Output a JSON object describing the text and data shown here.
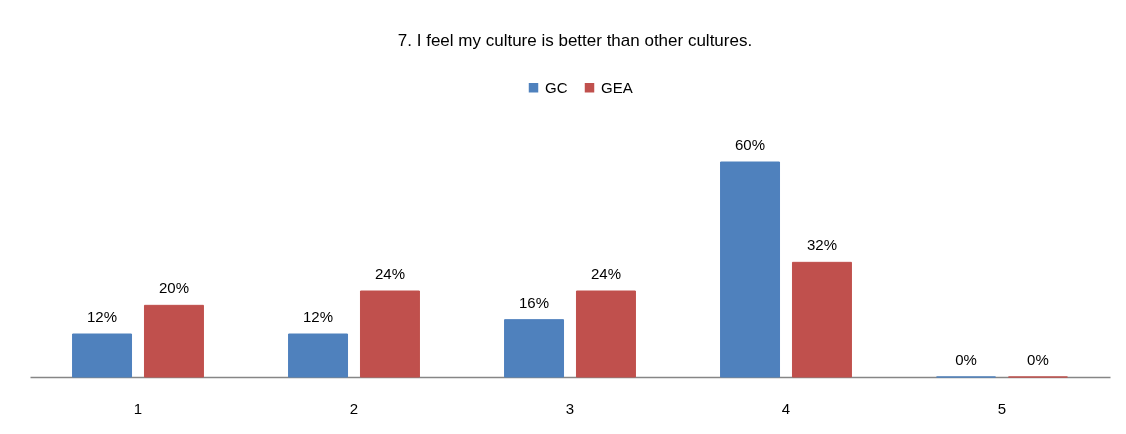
{
  "chart_data": {
    "type": "bar",
    "title": "7. I feel my culture is better than other cultures.",
    "categories": [
      "1",
      "2",
      "3",
      "4",
      "5"
    ],
    "series": [
      {
        "name": "GC",
        "color": "#4f81bd",
        "values": [
          12,
          12,
          16,
          60,
          0
        ],
        "value_labels": [
          "12%",
          "12%",
          "16%",
          "60%",
          "0%"
        ]
      },
      {
        "name": "GEA",
        "color": "#c0504d",
        "values": [
          20,
          24,
          24,
          32,
          0
        ],
        "value_labels": [
          "20%",
          "24%",
          "24%",
          "32%",
          "0%"
        ]
      }
    ],
    "legend": "top"
  }
}
